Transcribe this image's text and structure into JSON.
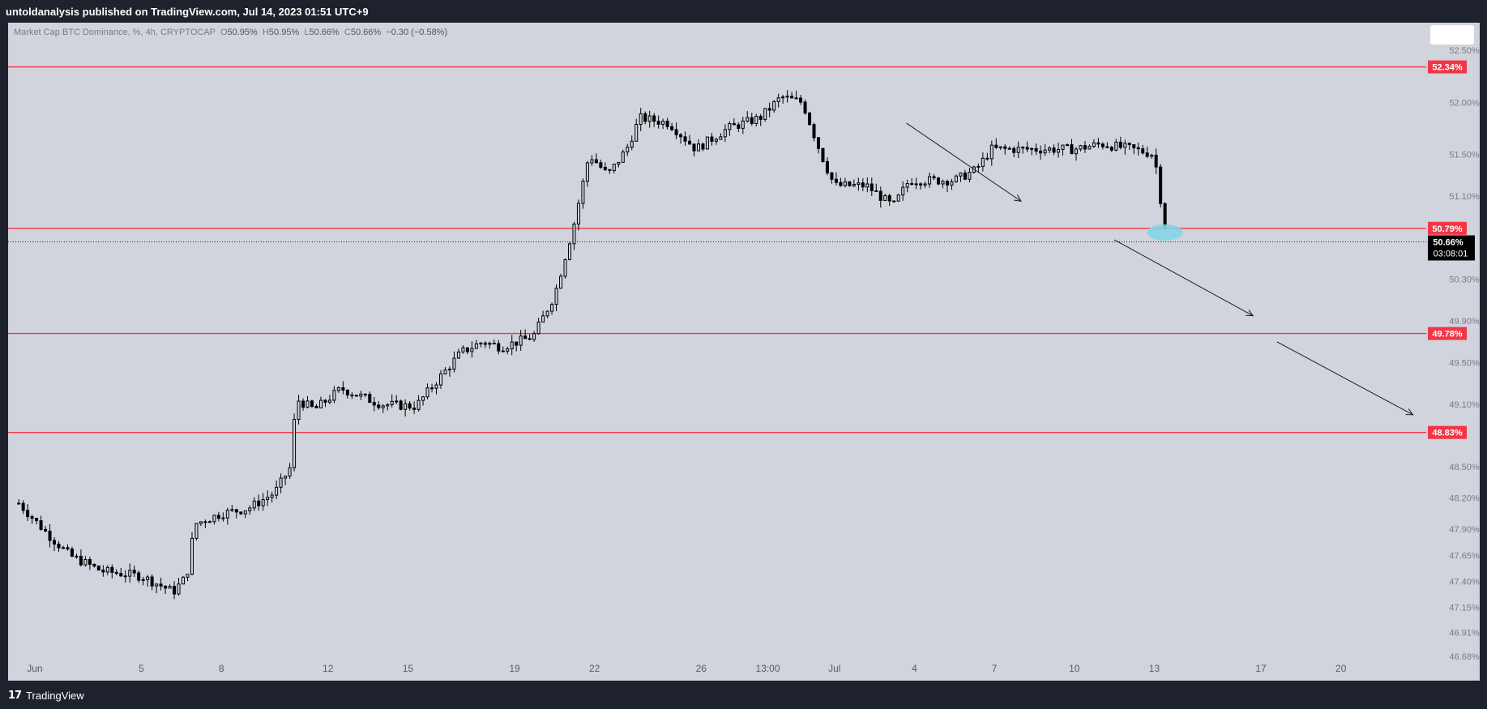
{
  "header": {
    "publisher_line": "untoldanalysis published on TradingView.com, Jul 14, 2023 01:51 UTC+9"
  },
  "legend": {
    "symbol": "Market Cap BTC Dominance, %, 4h, CRYPTOCAP",
    "o_label": "O",
    "o_value": "50.95%",
    "h_label": "H",
    "h_value": "50.95%",
    "l_label": "L",
    "l_value": "50.66%",
    "c_label": "C",
    "c_value": "50.66%",
    "change": "−0.30 (−0.58%)"
  },
  "footer": {
    "brand": "TradingView",
    "brand_icon": "tradingview-logo-icon"
  },
  "colors": {
    "background": "#d1d4dc",
    "frame": "#1e222d",
    "level_line": "#f23645",
    "candle": "#000000",
    "highlight": "#7ed6e8"
  },
  "chart_data": {
    "type": "candlestick",
    "y_unit": "%",
    "ylim": [
      46.68,
      52.7
    ],
    "y_ticks": [
      "52.50%",
      "52.00%",
      "51.50%",
      "51.10%",
      "50.30%",
      "49.90%",
      "49.50%",
      "49.10%",
      "48.50%",
      "48.20%",
      "47.90%",
      "47.65%",
      "47.40%",
      "47.15%",
      "46.91%",
      "46.68%"
    ],
    "y_tick_values": [
      52.5,
      52.0,
      51.5,
      51.1,
      50.3,
      49.9,
      49.5,
      49.1,
      48.5,
      48.2,
      47.9,
      47.65,
      47.4,
      47.15,
      46.91,
      46.68
    ],
    "x_ticks": [
      {
        "label": "Jun",
        "day": 1
      },
      {
        "label": "5",
        "day": 5
      },
      {
        "label": "8",
        "day": 8
      },
      {
        "label": "12",
        "day": 12
      },
      {
        "label": "15",
        "day": 15
      },
      {
        "label": "19",
        "day": 19
      },
      {
        "label": "22",
        "day": 22
      },
      {
        "label": "26",
        "day": 26
      },
      {
        "label": "13:00",
        "day": 28.5
      },
      {
        "label": "Jul",
        "day": 31
      },
      {
        "label": "4",
        "day": 34
      },
      {
        "label": "7",
        "day": 37
      },
      {
        "label": "10",
        "day": 40
      },
      {
        "label": "13",
        "day": 43
      },
      {
        "label": "17",
        "day": 47
      },
      {
        "label": "20",
        "day": 50
      }
    ],
    "levels": [
      {
        "value": 52.34,
        "label": "52.34%"
      },
      {
        "value": 50.79,
        "label": "50.79%"
      },
      {
        "value": 49.78,
        "label": "49.78%"
      },
      {
        "value": 48.83,
        "label": "48.83%"
      }
    ],
    "last_price": {
      "value": 50.66,
      "label": "50.66%",
      "countdown": "03:08:01"
    },
    "series_anchors": [
      {
        "day": 0.4,
        "close": 48.15
      },
      {
        "day": 1.5,
        "close": 47.85
      },
      {
        "day": 2.3,
        "close": 47.65
      },
      {
        "day": 3.5,
        "close": 47.5
      },
      {
        "day": 5.0,
        "close": 47.45
      },
      {
        "day": 6.2,
        "close": 47.3
      },
      {
        "day": 6.7,
        "close": 47.45
      },
      {
        "day": 7.0,
        "close": 47.95
      },
      {
        "day": 8.0,
        "close": 48.05
      },
      {
        "day": 9.0,
        "close": 48.1
      },
      {
        "day": 10.0,
        "close": 48.25
      },
      {
        "day": 10.6,
        "close": 48.5
      },
      {
        "day": 10.8,
        "close": 49.15
      },
      {
        "day": 11.5,
        "close": 49.05
      },
      {
        "day": 12.5,
        "close": 49.25
      },
      {
        "day": 14.0,
        "close": 49.1
      },
      {
        "day": 15.3,
        "close": 49.08
      },
      {
        "day": 16.0,
        "close": 49.3
      },
      {
        "day": 17.0,
        "close": 49.6
      },
      {
        "day": 17.8,
        "close": 49.7
      },
      {
        "day": 18.5,
        "close": 49.65
      },
      {
        "day": 19.7,
        "close": 49.75
      },
      {
        "day": 20.5,
        "close": 50.15
      },
      {
        "day": 21.2,
        "close": 50.8
      },
      {
        "day": 21.8,
        "close": 51.5
      },
      {
        "day": 22.5,
        "close": 51.3
      },
      {
        "day": 23.2,
        "close": 51.55
      },
      {
        "day": 23.7,
        "close": 51.85
      },
      {
        "day": 24.8,
        "close": 51.8
      },
      {
        "day": 25.8,
        "close": 51.55
      },
      {
        "day": 27.0,
        "close": 51.75
      },
      {
        "day": 28.2,
        "close": 51.85
      },
      {
        "day": 29.0,
        "close": 52.05
      },
      {
        "day": 29.8,
        "close": 52.0
      },
      {
        "day": 30.5,
        "close": 51.5
      },
      {
        "day": 31.0,
        "close": 51.2
      },
      {
        "day": 32.2,
        "close": 51.2
      },
      {
        "day": 33.2,
        "close": 51.0
      },
      {
        "day": 33.8,
        "close": 51.25
      },
      {
        "day": 35.5,
        "close": 51.25
      },
      {
        "day": 36.3,
        "close": 51.35
      },
      {
        "day": 36.9,
        "close": 51.55
      },
      {
        "day": 38.5,
        "close": 51.55
      },
      {
        "day": 40.0,
        "close": 51.55
      },
      {
        "day": 41.0,
        "close": 51.6
      },
      {
        "day": 42.2,
        "close": 51.55
      },
      {
        "day": 43.0,
        "close": 51.5
      },
      {
        "day": 43.3,
        "close": 50.95
      },
      {
        "day": 43.55,
        "close": 50.66
      }
    ],
    "highlight": {
      "day": 43.4,
      "value": 50.75
    },
    "arrows": [
      {
        "from": {
          "day": 33.7,
          "value": 51.8
        },
        "to": {
          "day": 38.0,
          "value": 51.05
        }
      },
      {
        "from": {
          "day": 41.5,
          "value": 50.68
        },
        "to": {
          "day": 46.7,
          "value": 49.95
        }
      },
      {
        "from": {
          "day": 47.6,
          "value": 49.7
        },
        "to": {
          "day": 52.7,
          "value": 49.0
        }
      }
    ]
  }
}
